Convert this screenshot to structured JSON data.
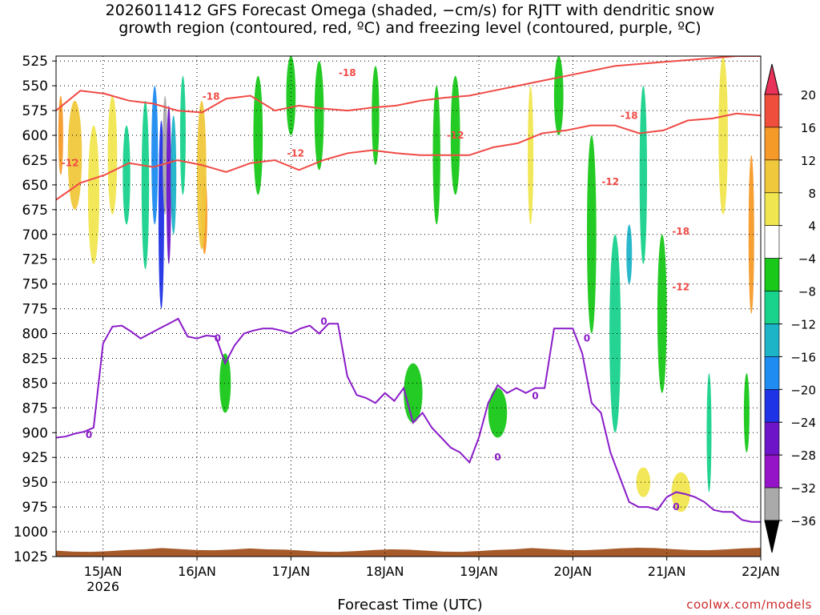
{
  "title_lines": [
    "2026011412 GFS Forecast Omega (shaded, −cm/s) for RJTT with dendritic snow",
    "growth region (contoured, red, ºC) and freezing level (contoured, purple, ºC)"
  ],
  "credit": "coolwx.com/models",
  "chart_data": {
    "type": "heatmap",
    "xlabel": "Forecast Time (UTC)",
    "ylabel": "",
    "x_ticks": [
      {
        "label": "15JAN",
        "sublabel": "2026",
        "day": 15
      },
      {
        "label": "16JAN",
        "day": 16
      },
      {
        "label": "17JAN",
        "day": 17
      },
      {
        "label": "18JAN",
        "day": 18
      },
      {
        "label": "19JAN",
        "day": 19
      },
      {
        "label": "20JAN",
        "day": 20
      },
      {
        "label": "21JAN",
        "day": 21
      },
      {
        "label": "22JAN",
        "day": 22
      }
    ],
    "xlim": [
      14.5,
      22.0
    ],
    "y_ticks": [
      525,
      550,
      575,
      600,
      625,
      650,
      675,
      700,
      725,
      750,
      775,
      800,
      825,
      850,
      875,
      900,
      925,
      950,
      975,
      1000,
      1025
    ],
    "ylim": [
      520,
      1025
    ],
    "colorbar": {
      "tick_labels": [
        "20",
        "16",
        "12",
        "8",
        "4",
        "−4",
        "−8",
        "−12",
        "−16",
        "−20",
        "−24",
        "−28",
        "−32",
        "−36"
      ],
      "colors": [
        "#e8325a",
        "#f04e3c",
        "#f59a28",
        "#f0c83c",
        "#f0e650",
        "#ffffff",
        "#19c819",
        "#19d28c",
        "#1eb4c8",
        "#1e8cf0",
        "#1e32e6",
        "#6e14c8",
        "#9614c8",
        "#aaaaaa",
        "#000000"
      ]
    },
    "omega_blobs": [
      {
        "x": 14.55,
        "p": 600,
        "w": 0.05,
        "h": 80,
        "v": 14
      },
      {
        "x": 14.7,
        "p": 620,
        "w": 0.15,
        "h": 110,
        "v": 8
      },
      {
        "x": 14.9,
        "p": 660,
        "w": 0.12,
        "h": 140,
        "v": 5
      },
      {
        "x": 15.1,
        "p": 620,
        "w": 0.1,
        "h": 120,
        "v": 6
      },
      {
        "x": 15.25,
        "p": 640,
        "w": 0.08,
        "h": 100,
        "v": -10
      },
      {
        "x": 15.45,
        "p": 650,
        "w": 0.08,
        "h": 170,
        "v": -12
      },
      {
        "x": 15.55,
        "p": 620,
        "w": 0.07,
        "h": 140,
        "v": -18
      },
      {
        "x": 15.62,
        "p": 680,
        "w": 0.06,
        "h": 190,
        "v": -22
      },
      {
        "x": 15.66,
        "p": 620,
        "w": 0.04,
        "h": 120,
        "v": -34
      },
      {
        "x": 15.7,
        "p": 650,
        "w": 0.05,
        "h": 160,
        "v": -28
      },
      {
        "x": 15.75,
        "p": 640,
        "w": 0.06,
        "h": 120,
        "v": -16
      },
      {
        "x": 15.85,
        "p": 600,
        "w": 0.06,
        "h": 120,
        "v": -12
      },
      {
        "x": 16.08,
        "p": 680,
        "w": 0.06,
        "h": 80,
        "v": 14
      },
      {
        "x": 16.05,
        "p": 640,
        "w": 0.1,
        "h": 150,
        "v": 8
      },
      {
        "x": 16.3,
        "p": 850,
        "w": 0.12,
        "h": 60,
        "v": -8
      },
      {
        "x": 16.65,
        "p": 600,
        "w": 0.1,
        "h": 120,
        "v": -8
      },
      {
        "x": 17.0,
        "p": 560,
        "w": 0.1,
        "h": 80,
        "v": -8
      },
      {
        "x": 17.3,
        "p": 580,
        "w": 0.1,
        "h": 110,
        "v": -8
      },
      {
        "x": 17.9,
        "p": 580,
        "w": 0.08,
        "h": 100,
        "v": -8
      },
      {
        "x": 18.3,
        "p": 860,
        "w": 0.2,
        "h": 60,
        "v": -8
      },
      {
        "x": 18.55,
        "p": 620,
        "w": 0.08,
        "h": 140,
        "v": -8
      },
      {
        "x": 18.75,
        "p": 600,
        "w": 0.1,
        "h": 120,
        "v": -8
      },
      {
        "x": 19.2,
        "p": 880,
        "w": 0.2,
        "h": 50,
        "v": -8
      },
      {
        "x": 19.55,
        "p": 620,
        "w": 0.06,
        "h": 140,
        "v": 6
      },
      {
        "x": 19.85,
        "p": 560,
        "w": 0.1,
        "h": 80,
        "v": -8
      },
      {
        "x": 20.2,
        "p": 700,
        "w": 0.1,
        "h": 200,
        "v": -8
      },
      {
        "x": 20.45,
        "p": 800,
        "w": 0.12,
        "h": 200,
        "v": -12
      },
      {
        "x": 20.6,
        "p": 720,
        "w": 0.06,
        "h": 60,
        "v": -16
      },
      {
        "x": 20.75,
        "p": 640,
        "w": 0.08,
        "h": 180,
        "v": -12
      },
      {
        "x": 20.95,
        "p": 780,
        "w": 0.1,
        "h": 160,
        "v": -8
      },
      {
        "x": 20.75,
        "p": 950,
        "w": 0.15,
        "h": 30,
        "v": 6
      },
      {
        "x": 21.15,
        "p": 960,
        "w": 0.2,
        "h": 40,
        "v": 6
      },
      {
        "x": 21.45,
        "p": 900,
        "w": 0.05,
        "h": 120,
        "v": -12
      },
      {
        "x": 21.6,
        "p": 600,
        "w": 0.1,
        "h": 160,
        "v": 6
      },
      {
        "x": 21.9,
        "p": 700,
        "w": 0.06,
        "h": 160,
        "v": 14
      },
      {
        "x": 21.85,
        "p": 880,
        "w": 0.06,
        "h": 80,
        "v": -8
      }
    ],
    "dgz_contours": [
      {
        "label": "-18",
        "p": [
          575,
          555,
          558,
          565,
          568,
          575,
          577,
          563,
          560,
          575,
          570,
          573,
          575,
          572,
          570,
          565,
          562,
          560,
          555,
          550,
          545,
          540,
          535,
          530,
          528,
          526,
          524,
          522,
          520,
          520
        ]
      },
      {
        "label": "-12",
        "p": [
          665,
          648,
          640,
          628,
          632,
          625,
          630,
          637,
          628,
          625,
          635,
          625,
          618,
          615,
          618,
          620,
          620,
          620,
          612,
          608,
          598,
          595,
          590,
          590,
          598,
          595,
          585,
          583,
          578,
          580
        ]
      }
    ],
    "dgz_labels": [
      {
        "text": "-18",
        "x": 16.15,
        "p": 561
      },
      {
        "text": "-12",
        "x": 14.65,
        "p": 628
      },
      {
        "text": "-12",
        "x": 17.05,
        "p": 618
      },
      {
        "text": "-18",
        "x": 17.6,
        "p": 537
      },
      {
        "text": "-12",
        "x": 18.75,
        "p": 600
      },
      {
        "text": "-18",
        "x": 20.6,
        "p": 580
      },
      {
        "text": "-12",
        "x": 20.4,
        "p": 647
      },
      {
        "text": "-18",
        "x": 21.15,
        "p": 697
      },
      {
        "text": "-12",
        "x": 21.15,
        "p": 753
      }
    ],
    "freezing_level": {
      "label": "0",
      "x": [
        14.5,
        14.6,
        14.7,
        14.8,
        14.9,
        15.0,
        15.1,
        15.2,
        15.3,
        15.4,
        15.5,
        15.6,
        15.7,
        15.8,
        15.9,
        16.0,
        16.1,
        16.2,
        16.3,
        16.4,
        16.5,
        16.6,
        16.7,
        16.8,
        16.9,
        17.0,
        17.1,
        17.2,
        17.3,
        17.4,
        17.5,
        17.6,
        17.7,
        17.8,
        17.9,
        18.0,
        18.1,
        18.2,
        18.3,
        18.4,
        18.5,
        18.6,
        18.7,
        18.8,
        18.9,
        19.0,
        19.1,
        19.2,
        19.3,
        19.4,
        19.5,
        19.6,
        19.7,
        19.8,
        19.9,
        20.0,
        20.1,
        20.2,
        20.3,
        20.4,
        20.5,
        20.6,
        20.7,
        20.8,
        20.9,
        21.0,
        21.1,
        21.2,
        21.3,
        21.4,
        21.5,
        21.6,
        21.7,
        21.8,
        21.9,
        22.0
      ],
      "p": [
        905,
        904,
        901,
        899,
        895,
        810,
        793,
        792,
        798,
        805,
        800,
        795,
        790,
        785,
        803,
        805,
        802,
        803,
        830,
        812,
        800,
        797,
        795,
        795,
        797,
        800,
        795,
        792,
        800,
        790,
        790,
        843,
        862,
        865,
        870,
        860,
        868,
        855,
        890,
        880,
        895,
        905,
        915,
        920,
        930,
        905,
        870,
        852,
        860,
        855,
        860,
        855,
        855,
        795,
        795,
        795,
        820,
        870,
        880,
        920,
        945,
        970,
        975,
        975,
        978,
        965,
        960,
        962,
        965,
        970,
        978,
        980,
        980,
        988,
        990,
        990
      ]
    },
    "freezing_labels": [
      {
        "text": "0",
        "x": 14.85,
        "p": 902
      },
      {
        "text": "0",
        "x": 16.22,
        "p": 805
      },
      {
        "text": "0",
        "x": 17.35,
        "p": 788
      },
      {
        "text": "0",
        "x": 19.2,
        "p": 925
      },
      {
        "text": "0",
        "x": 19.6,
        "p": 863
      },
      {
        "text": "0",
        "x": 20.15,
        "p": 805
      },
      {
        "text": "0",
        "x": 21.1,
        "p": 975
      }
    ],
    "terrain": {
      "top_pressure": 1019
    }
  },
  "colors": {
    "grid": "#000000",
    "dgz_contour": "#f04a44",
    "freezing_contour": "#8a1cc8",
    "terrain": "#a65a2a"
  }
}
